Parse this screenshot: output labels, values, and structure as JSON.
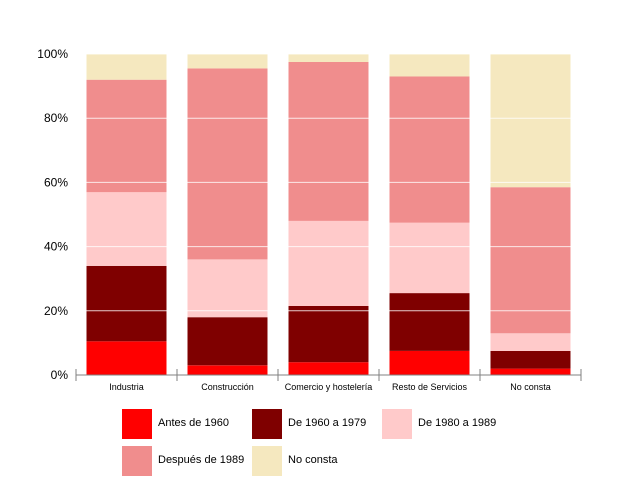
{
  "chart_data": {
    "type": "bar",
    "stacked": true,
    "percent": true,
    "categories": [
      "Industria",
      "Construcción",
      "Comercio y hostelería",
      "Resto de Servicios",
      "No consta"
    ],
    "series": [
      {
        "name": "Antes de 1960",
        "color": "#ff0000",
        "values": [
          10.5,
          3,
          4,
          7.5,
          2
        ]
      },
      {
        "name": "De 1960 a 1979",
        "color": "#7f0000",
        "values": [
          23.5,
          15,
          17.5,
          18,
          5.5
        ]
      },
      {
        "name": "De 1980 a 1989",
        "color": "#ffcaca",
        "values": [
          23,
          18,
          26.5,
          22,
          5.5
        ]
      },
      {
        "name": "Después de 1989",
        "color": "#f08d8d",
        "values": [
          35,
          59.5,
          49.5,
          45.5,
          45.5
        ]
      },
      {
        "name": "No consta",
        "color": "#f5e8bf",
        "values": [
          8,
          4.5,
          2.5,
          7,
          41.5
        ]
      }
    ],
    "y_ticks": [
      "0%",
      "20%",
      "40%",
      "60%",
      "80%",
      "100%"
    ],
    "ylim": [
      0,
      100
    ],
    "grid": true,
    "legend_position": "bottom"
  }
}
